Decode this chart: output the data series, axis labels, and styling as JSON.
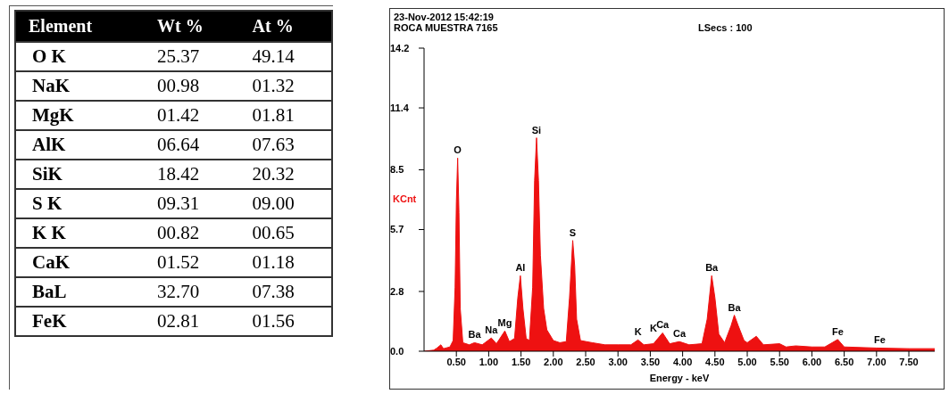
{
  "chart_data": [
    {
      "type": "other",
      "ylabel": "Element",
      "categories": [
        "O K",
        "NaK",
        "MgK",
        "AlK",
        "SiK",
        "S K",
        "K K",
        "CaK",
        "BaL",
        "FeK"
      ],
      "series": [
        {
          "name": "Wt %",
          "values": [
            25.37,
            0.98,
            1.42,
            6.64,
            18.42,
            9.31,
            0.82,
            1.52,
            32.7,
            2.81
          ],
          "value_labels": [
            "25.37",
            "00.98",
            "01.42",
            "06.64",
            "18.42",
            "09.31",
            "00.82",
            "01.52",
            "32.70",
            "02.81"
          ]
        },
        {
          "name": "At %",
          "values": [
            49.14,
            1.32,
            1.81,
            7.63,
            20.32,
            9.0,
            0.65,
            1.18,
            7.38,
            1.56
          ],
          "value_labels": [
            "49.14",
            "01.32",
            "01.81",
            "07.63",
            "20.32",
            "09.00",
            "00.65",
            "01.18",
            "07.38",
            "01.56"
          ]
        }
      ]
    },
    {
      "type": "area",
      "title": "23-Nov-2012 15:42:19",
      "subtitle": "ROCA MUESTRA 7165",
      "xlabel": "Energy - keV",
      "ylabel": "KCnt",
      "color": "#ee1111",
      "x": [
        0,
        0.15,
        0.2,
        0.26,
        0.3,
        0.4,
        0.45,
        0.48,
        0.5,
        0.52,
        0.54,
        0.56,
        0.6,
        0.7,
        0.78,
        0.9,
        1.04,
        1.12,
        1.25,
        1.32,
        1.4,
        1.45,
        1.49,
        1.53,
        1.58,
        1.63,
        1.68,
        1.71,
        1.74,
        1.77,
        1.8,
        1.85,
        1.9,
        2.0,
        2.1,
        2.2,
        2.25,
        2.3,
        2.33,
        2.36,
        2.42,
        2.6,
        2.8,
        3.0,
        3.2,
        3.31,
        3.4,
        3.55,
        3.69,
        3.8,
        3.95,
        4.1,
        4.3,
        4.38,
        4.45,
        4.5,
        4.56,
        4.65,
        4.75,
        4.8,
        4.86,
        4.95,
        5.0,
        5.14,
        5.25,
        5.5,
        5.6,
        5.75,
        6.0,
        6.2,
        6.4,
        6.5,
        7.0,
        7.5,
        7.9
      ],
      "values": [
        0,
        0.05,
        0.15,
        0.3,
        0.12,
        0.2,
        0.5,
        3.0,
        7.0,
        9.05,
        6.5,
        2.0,
        0.4,
        0.3,
        0.4,
        0.3,
        0.62,
        0.35,
        0.95,
        0.45,
        0.6,
        2.5,
        3.54,
        2.0,
        0.6,
        0.5,
        3.0,
        8.0,
        10.0,
        8.0,
        4.5,
        2.0,
        1.0,
        0.5,
        0.4,
        0.45,
        2.5,
        5.19,
        4.0,
        1.5,
        0.5,
        0.4,
        0.3,
        0.3,
        0.3,
        0.53,
        0.3,
        0.35,
        0.86,
        0.35,
        0.45,
        0.3,
        0.35,
        1.5,
        3.54,
        2.5,
        0.8,
        0.4,
        1.2,
        1.69,
        1.2,
        0.5,
        0.4,
        0.7,
        0.3,
        0.35,
        0.2,
        0.25,
        0.2,
        0.2,
        0.55,
        0.2,
        0.15,
        0.12,
        0.12
      ],
      "xlim": [
        0,
        7.9
      ],
      "xticks": [
        {
          "value": 0.5,
          "label": "0.50"
        },
        {
          "value": 1,
          "label": "1.00"
        },
        {
          "value": 1.5,
          "label": "1.50"
        },
        {
          "value": 2,
          "label": "2.00"
        },
        {
          "value": 2.5,
          "label": "2.50"
        },
        {
          "value": 3,
          "label": "3.00"
        },
        {
          "value": 3.5,
          "label": "3.50"
        },
        {
          "value": 4,
          "label": "4.00"
        },
        {
          "value": 4.5,
          "label": "4.50"
        },
        {
          "value": 5,
          "label": "5.00"
        },
        {
          "value": 5.5,
          "label": "5.50"
        },
        {
          "value": 6,
          "label": "6.00"
        },
        {
          "value": 6.5,
          "label": "6.50"
        },
        {
          "value": 7,
          "label": "7.00"
        },
        {
          "value": 7.5,
          "label": "7.50"
        }
      ],
      "ylim": [
        0,
        14.2
      ],
      "yticks": [
        {
          "value": 0,
          "label": "0.0"
        },
        2.8,
        5.7,
        8.5,
        11.4,
        14.2
      ],
      "annotations": [
        "LSecs :  100",
        {
          "text": "O",
          "x": 0.52,
          "y": 9.05
        },
        {
          "text": "Si",
          "x": 1.74,
          "y": 10.0
        },
        {
          "text": "S",
          "x": 2.3,
          "y": 5.19
        },
        {
          "text": "Al",
          "x": 1.49,
          "y": 3.54
        },
        {
          "text": "Mg",
          "x": 1.25,
          "y": 0.95
        },
        {
          "text": "Na",
          "x": 1.04,
          "y": 0.62
        },
        {
          "text": "Ba",
          "x": 0.78,
          "y": 0.4
        },
        {
          "text": "K",
          "x": 3.31,
          "y": 0.53
        },
        {
          "text": "K",
          "x": 3.55,
          "y": 0.7
        },
        {
          "text": "Ca",
          "x": 3.69,
          "y": 0.86
        },
        {
          "text": "Ca",
          "x": 3.95,
          "y": 0.45
        },
        {
          "text": "Ba",
          "x": 4.45,
          "y": 3.54
        },
        {
          "text": "Ba",
          "x": 4.8,
          "y": 1.69
        },
        {
          "text": "Fe",
          "x": 6.4,
          "y": 0.55
        },
        {
          "text": "Fe",
          "x": 7.05,
          "y": 0.15
        }
      ]
    }
  ]
}
